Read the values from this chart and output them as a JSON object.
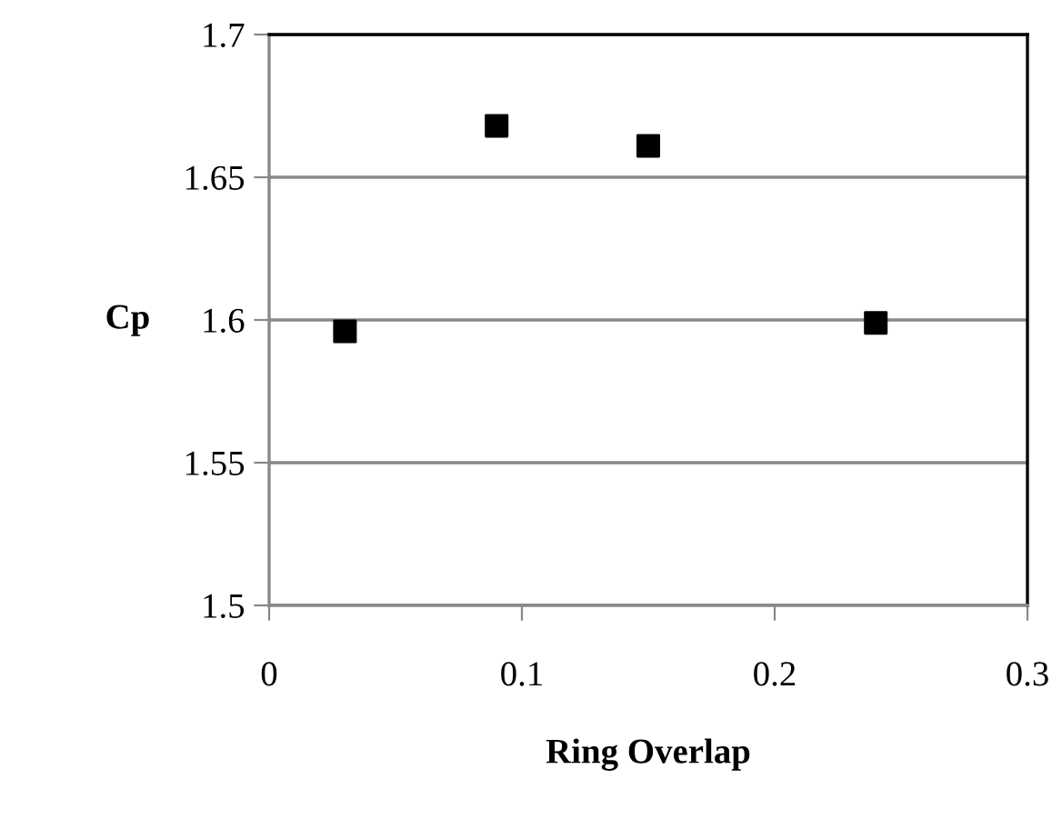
{
  "chart_data": {
    "type": "scatter",
    "xlabel": "Ring Overlap",
    "ylabel": "Cp",
    "x": [
      0.03,
      0.09,
      0.15,
      0.24
    ],
    "series": [
      {
        "color": "#000000",
        "values": [
          1.596,
          1.668,
          1.661,
          1.599
        ]
      }
    ],
    "xlim": [
      0,
      0.3
    ],
    "xticks": [
      0,
      0.1,
      0.2,
      0.3
    ],
    "ylim": [
      1.5,
      1.7
    ],
    "yticks": [
      1.5,
      1.55,
      1.6,
      1.65,
      1.7
    ],
    "grid": "y",
    "marker": "square",
    "legend": false
  }
}
